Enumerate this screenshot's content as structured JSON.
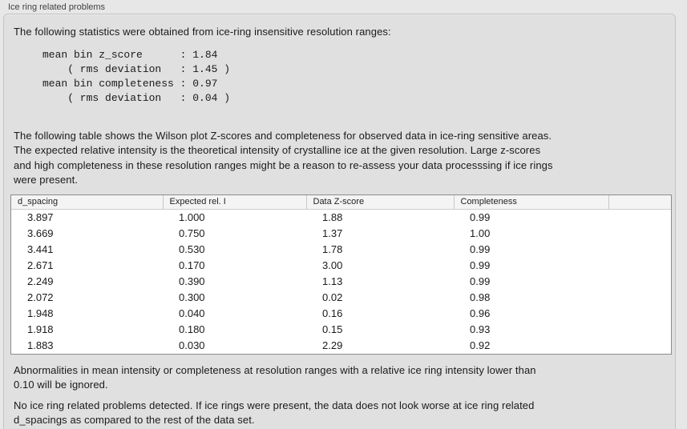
{
  "panel": {
    "title": "Ice ring related problems"
  },
  "intro": {
    "text": "The following statistics were obtained from ice-ring insensitive resolution ranges:"
  },
  "stats": {
    "text": "mean bin z_score      : 1.84\n    ( rms deviation   : 1.45 )\nmean bin completeness : 0.97\n    ( rms deviation   : 0.04 )",
    "mean_bin_z_score": "1.84",
    "z_score_rms_deviation": "1.45",
    "mean_bin_completeness": "0.97",
    "completeness_rms_deviation": "0.04"
  },
  "description": {
    "text": "The following table shows the Wilson plot Z-scores and completeness for observed data in ice-ring sensitive areas.\nThe expected relative intensity is the theoretical intensity of crystalline ice at the given resolution. Large z-scores\nand high completeness in these resolution ranges might be a reason to re-assess your data processsing if ice rings\nwere present."
  },
  "table": {
    "columns": [
      "d_spacing",
      "Expected rel. I",
      "Data Z-score",
      "Completeness"
    ],
    "rows": [
      [
        "3.897",
        "1.000",
        "1.88",
        "0.99"
      ],
      [
        "3.669",
        "0.750",
        "1.37",
        "1.00"
      ],
      [
        "3.441",
        "0.530",
        "1.78",
        "0.99"
      ],
      [
        "2.671",
        "0.170",
        "3.00",
        "0.99"
      ],
      [
        "2.249",
        "0.390",
        "1.13",
        "0.99"
      ],
      [
        "2.072",
        "0.300",
        "0.02",
        "0.98"
      ],
      [
        "1.948",
        "0.040",
        "0.16",
        "0.96"
      ],
      [
        "1.918",
        "0.180",
        "0.15",
        "0.93"
      ],
      [
        "1.883",
        "0.030",
        "2.29",
        "0.92"
      ]
    ]
  },
  "notes": {
    "ignore_note": "Abnormalities in mean intensity or completeness at resolution ranges with a relative ice ring intensity lower than\n0.10 will be ignored.",
    "conclusion": "No ice ring related problems detected. If ice rings were present, the data does not look worse at ice ring related\nd_spacings as compared to the rest of the data set."
  },
  "colors": {
    "page_bg": "#e7e7e7",
    "panel_bg": "#e0e0e0",
    "panel_border": "#c2c2c2",
    "table_border": "#8c8c8c",
    "table_header_bg": "#f4f4f4"
  }
}
